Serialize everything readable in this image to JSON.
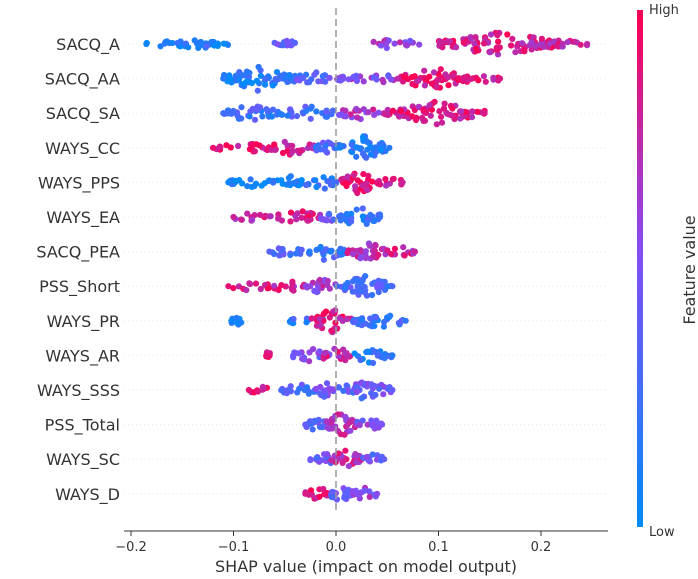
{
  "chart_data": {
    "type": "scatter",
    "subtype": "shap-beeswarm-summary",
    "xlabel": "SHAP value (impact on model output)",
    "xlim": [
      -0.21,
      0.265
    ],
    "xticks": [
      -0.2,
      -0.1,
      0.0,
      0.1,
      0.2
    ],
    "xtick_labels": [
      "−0.2",
      "−0.1",
      "0.0",
      "0.1",
      "0.2"
    ],
    "zero_line": true,
    "colorbar": {
      "label": "Feature value",
      "high_label": "High",
      "low_label": "Low",
      "high_color": "#ff0052",
      "low_color": "#008bfb"
    },
    "features": [
      {
        "name": "SACQ_A",
        "min": -0.185,
        "max": 0.245,
        "clusters": [
          [
            -0.185,
            -0.105,
            0.05,
            0.25
          ],
          [
            -0.155,
            -0.12,
            0.15,
            0.35
          ],
          [
            -0.06,
            -0.035,
            0.35,
            0.2
          ],
          [
            0.03,
            0.085,
            0.6,
            0.25
          ],
          [
            0.1,
            0.22,
            0.85,
            0.9
          ],
          [
            0.18,
            0.245,
            0.75,
            0.2
          ]
        ]
      },
      {
        "name": "SACQ_AA",
        "min": -0.11,
        "max": 0.16,
        "clusters": [
          [
            -0.11,
            -0.04,
            0.15,
            0.9
          ],
          [
            -0.04,
            0.0,
            0.35,
            0.4
          ],
          [
            0.0,
            0.06,
            0.55,
            0.35
          ],
          [
            0.06,
            0.13,
            0.9,
            0.8
          ],
          [
            0.13,
            0.16,
            0.85,
            0.2
          ]
        ]
      },
      {
        "name": "SACQ_SA",
        "min": -0.11,
        "max": 0.145,
        "clusters": [
          [
            -0.11,
            -0.055,
            0.25,
            0.6
          ],
          [
            -0.055,
            0.0,
            0.3,
            0.45
          ],
          [
            0.0,
            0.05,
            0.65,
            0.35
          ],
          [
            0.05,
            0.145,
            0.85,
            0.8
          ]
        ]
      },
      {
        "name": "WAYS_CC",
        "min": -0.12,
        "max": 0.052,
        "clusters": [
          [
            -0.12,
            -0.065,
            0.92,
            0.3
          ],
          [
            -0.065,
            -0.02,
            0.85,
            0.5
          ],
          [
            -0.02,
            0.0,
            0.3,
            0.4
          ],
          [
            0.0,
            0.052,
            0.15,
            0.9
          ]
        ]
      },
      {
        "name": "WAYS_PPS",
        "min": -0.105,
        "max": 0.065,
        "clusters": [
          [
            -0.105,
            -0.065,
            0.05,
            0.3
          ],
          [
            -0.065,
            -0.03,
            0.1,
            0.45
          ],
          [
            -0.03,
            0.005,
            0.2,
            0.4
          ],
          [
            0.005,
            0.04,
            0.9,
            0.9
          ],
          [
            0.04,
            0.065,
            0.8,
            0.25
          ]
        ]
      },
      {
        "name": "WAYS_EA",
        "min": -0.1,
        "max": 0.043,
        "clusters": [
          [
            -0.1,
            -0.06,
            0.8,
            0.2
          ],
          [
            -0.06,
            -0.015,
            0.8,
            0.45
          ],
          [
            -0.015,
            0.01,
            0.4,
            0.3
          ],
          [
            0.0,
            0.043,
            0.2,
            0.7
          ]
        ]
      },
      {
        "name": "SACQ_PEA",
        "min": -0.065,
        "max": 0.077,
        "clusters": [
          [
            -0.065,
            -0.03,
            0.35,
            0.3
          ],
          [
            -0.03,
            0.01,
            0.2,
            0.6
          ],
          [
            0.01,
            0.05,
            0.7,
            0.7
          ],
          [
            0.05,
            0.077,
            0.8,
            0.25
          ]
        ]
      },
      {
        "name": "PSS_Short",
        "min": -0.105,
        "max": 0.055,
        "clusters": [
          [
            -0.105,
            -0.065,
            0.9,
            0.2
          ],
          [
            -0.065,
            -0.03,
            0.8,
            0.35
          ],
          [
            -0.03,
            0.0,
            0.65,
            0.5
          ],
          [
            0.0,
            0.055,
            0.3,
            0.8
          ]
        ]
      },
      {
        "name": "WAYS_PR",
        "min": -0.102,
        "max": 0.068,
        "clusters": [
          [
            -0.102,
            -0.092,
            0.05,
            0.3
          ],
          [
            -0.045,
            -0.01,
            0.2,
            0.3
          ],
          [
            -0.025,
            0.015,
            0.85,
            0.9
          ],
          [
            0.015,
            0.068,
            0.2,
            0.6
          ]
        ]
      },
      {
        "name": "WAYS_AR",
        "min": -0.068,
        "max": 0.055,
        "clusters": [
          [
            -0.068,
            -0.065,
            0.9,
            0.3
          ],
          [
            -0.045,
            -0.005,
            0.5,
            0.45
          ],
          [
            -0.015,
            0.015,
            0.8,
            0.6
          ],
          [
            0.015,
            0.055,
            0.15,
            0.5
          ]
        ]
      },
      {
        "name": "WAYS_SSS",
        "min": -0.085,
        "max": 0.055,
        "clusters": [
          [
            -0.085,
            -0.065,
            0.9,
            0.2
          ],
          [
            -0.055,
            -0.02,
            0.3,
            0.4
          ],
          [
            -0.02,
            0.0,
            0.5,
            0.5
          ],
          [
            0.0,
            0.055,
            0.4,
            0.7
          ]
        ]
      },
      {
        "name": "PSS_Total",
        "min": -0.03,
        "max": 0.045,
        "clusters": [
          [
            -0.03,
            -0.005,
            0.4,
            0.6
          ],
          [
            -0.01,
            0.02,
            0.7,
            0.9
          ],
          [
            0.02,
            0.045,
            0.5,
            0.4
          ]
        ]
      },
      {
        "name": "WAYS_SC",
        "min": -0.025,
        "max": 0.047,
        "clusters": [
          [
            -0.025,
            0.0,
            0.45,
            0.5
          ],
          [
            -0.005,
            0.025,
            0.75,
            0.7
          ],
          [
            0.025,
            0.047,
            0.4,
            0.3
          ]
        ]
      },
      {
        "name": "WAYS_D",
        "min": -0.03,
        "max": 0.04,
        "clusters": [
          [
            -0.03,
            -0.005,
            0.85,
            0.5
          ],
          [
            -0.005,
            0.015,
            0.4,
            0.8
          ],
          [
            0.015,
            0.04,
            0.55,
            0.4
          ]
        ]
      }
    ]
  }
}
